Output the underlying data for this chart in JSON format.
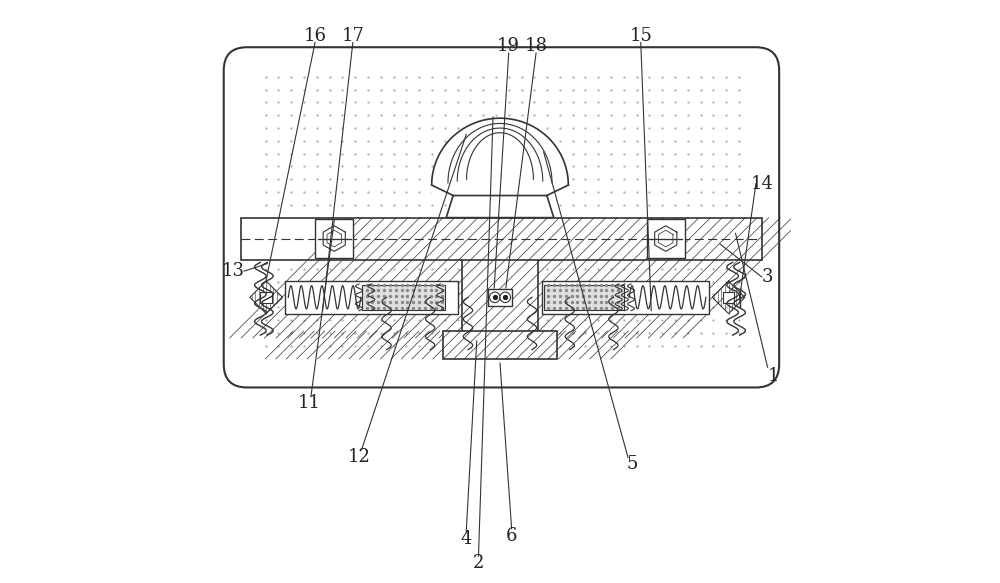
{
  "bg_color": "#ffffff",
  "line_color": "#333333",
  "label_color": "#222222",
  "fig_width": 10.0,
  "fig_height": 5.83,
  "font_size": 13
}
